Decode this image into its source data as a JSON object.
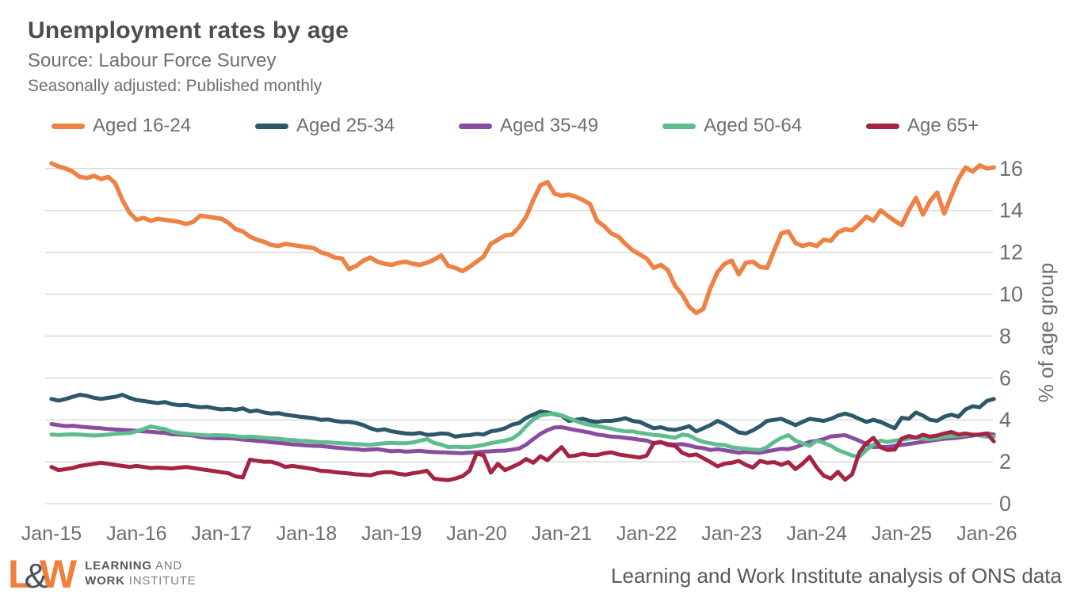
{
  "header": {
    "title": "Unemployment rates by age",
    "source": "Source: Labour Force Survey",
    "frequency": "Seasonally adjusted: Published monthly"
  },
  "footer": {
    "attribution": "Learning and Work Institute analysis of ONS data",
    "logo": {
      "letter_l": "L",
      "ampersand": "&",
      "letter_w": "W",
      "line1_bold": "LEARNING",
      "line1_rest": "AND",
      "line2_bold": "WORK",
      "line2_rest": "INSTITUTE",
      "brand_orange": "#f07f3c",
      "brand_gray": "#55575a"
    }
  },
  "chart_data": {
    "type": "line",
    "title": "Unemployment rates by age",
    "xlabel": "",
    "ylabel": "% of age group",
    "ylim": [
      0,
      16
    ],
    "yticks": [
      0,
      2,
      4,
      6,
      8,
      10,
      12,
      14,
      16
    ],
    "xticklabels": [
      "Jan-15",
      "Jan-16",
      "Jan-17",
      "Jan-18",
      "Jan-19",
      "Jan-20",
      "Jan-21",
      "Jan-22",
      "Jan-23",
      "Jan-24",
      "Jan-25",
      "Jan-26"
    ],
    "x_unit": "months from Jan-2015, monthly series",
    "grid": "horizontal",
    "legend_position": "top",
    "grid_color": "#dadada",
    "series": [
      {
        "name": "Aged 16-24",
        "color": "#ee8144",
        "values": [
          16.25,
          16.1,
          16.0,
          15.85,
          15.6,
          15.55,
          15.65,
          15.5,
          15.6,
          15.3,
          14.5,
          13.9,
          13.55,
          13.65,
          13.5,
          13.6,
          13.55,
          13.5,
          13.45,
          13.35,
          13.45,
          13.75,
          13.7,
          13.65,
          13.6,
          13.4,
          13.1,
          13.0,
          12.75,
          12.6,
          12.5,
          12.35,
          12.3,
          12.4,
          12.35,
          12.3,
          12.25,
          12.2,
          12.0,
          11.9,
          11.75,
          11.7,
          11.2,
          11.35,
          11.6,
          11.75,
          11.55,
          11.45,
          11.4,
          11.5,
          11.55,
          11.45,
          11.4,
          11.5,
          11.65,
          11.85,
          11.35,
          11.25,
          11.1,
          11.3,
          11.55,
          11.8,
          12.4,
          12.6,
          12.8,
          12.85,
          13.2,
          13.7,
          14.5,
          15.2,
          15.35,
          14.8,
          14.7,
          14.75,
          14.65,
          14.5,
          14.3,
          13.5,
          13.25,
          12.9,
          12.75,
          12.4,
          12.1,
          11.9,
          11.7,
          11.25,
          11.4,
          11.15,
          10.4,
          10.0,
          9.4,
          9.1,
          9.3,
          10.3,
          11.05,
          11.45,
          11.6,
          10.95,
          11.5,
          11.55,
          11.3,
          11.25,
          12.1,
          12.9,
          13.0,
          12.45,
          12.3,
          12.4,
          12.3,
          12.6,
          12.55,
          12.95,
          13.1,
          13.05,
          13.35,
          13.7,
          13.5,
          14.0,
          13.75,
          13.5,
          13.3,
          14.0,
          14.6,
          13.8,
          14.45,
          14.85,
          13.85,
          14.7,
          15.5,
          16.05,
          15.85,
          16.15,
          16.0,
          16.05
        ]
      },
      {
        "name": "Aged 25-34",
        "color": "#2c5869",
        "values": [
          5.0,
          4.92,
          5.0,
          5.1,
          5.2,
          5.15,
          5.05,
          5.0,
          5.05,
          5.1,
          5.2,
          5.05,
          4.95,
          4.9,
          4.85,
          4.8,
          4.85,
          4.75,
          4.7,
          4.72,
          4.65,
          4.6,
          4.62,
          4.55,
          4.5,
          4.52,
          4.48,
          4.55,
          4.4,
          4.45,
          4.35,
          4.3,
          4.32,
          4.25,
          4.2,
          4.15,
          4.12,
          4.08,
          4.0,
          4.02,
          3.95,
          3.9,
          3.9,
          3.85,
          3.75,
          3.6,
          3.5,
          3.55,
          3.45,
          3.4,
          3.35,
          3.33,
          3.38,
          3.28,
          3.3,
          3.35,
          3.33,
          3.2,
          3.25,
          3.27,
          3.33,
          3.3,
          3.45,
          3.5,
          3.6,
          3.77,
          3.85,
          4.1,
          4.25,
          4.4,
          4.35,
          4.27,
          4.2,
          3.95,
          4.0,
          4.05,
          3.95,
          3.9,
          3.95,
          3.95,
          4.0,
          4.08,
          3.95,
          3.9,
          3.75,
          3.6,
          3.65,
          3.55,
          3.52,
          3.6,
          3.7,
          3.45,
          3.6,
          3.75,
          3.95,
          3.8,
          3.6,
          3.4,
          3.35,
          3.5,
          3.7,
          3.95,
          4.0,
          4.05,
          3.9,
          3.75,
          3.9,
          4.05,
          4.0,
          3.95,
          4.05,
          4.2,
          4.3,
          4.2,
          4.05,
          3.9,
          4.0,
          3.9,
          3.75,
          3.6,
          4.1,
          4.05,
          4.35,
          4.2,
          4.0,
          3.95,
          4.15,
          4.25,
          4.15,
          4.5,
          4.65,
          4.6,
          4.9,
          5.0
        ]
      },
      {
        "name": "Aged 35-49",
        "color": "#8a4ca0",
        "values": [
          3.8,
          3.75,
          3.7,
          3.72,
          3.68,
          3.65,
          3.62,
          3.6,
          3.56,
          3.54,
          3.52,
          3.5,
          3.48,
          3.45,
          3.43,
          3.4,
          3.38,
          3.31,
          3.3,
          3.28,
          3.25,
          3.18,
          3.15,
          3.13,
          3.12,
          3.12,
          3.1,
          3.06,
          3.04,
          2.99,
          2.97,
          2.93,
          2.9,
          2.87,
          2.83,
          2.81,
          2.78,
          2.76,
          2.75,
          2.72,
          2.68,
          2.65,
          2.62,
          2.6,
          2.56,
          2.58,
          2.6,
          2.55,
          2.5,
          2.52,
          2.48,
          2.5,
          2.52,
          2.48,
          2.46,
          2.45,
          2.44,
          2.42,
          2.41,
          2.44,
          2.45,
          2.48,
          2.5,
          2.52,
          2.53,
          2.58,
          2.63,
          2.82,
          3.08,
          3.33,
          3.51,
          3.64,
          3.65,
          3.58,
          3.51,
          3.45,
          3.39,
          3.3,
          3.26,
          3.2,
          3.18,
          3.14,
          3.1,
          3.05,
          3.01,
          2.89,
          2.92,
          2.85,
          2.82,
          2.84,
          2.78,
          2.69,
          2.65,
          2.56,
          2.6,
          2.55,
          2.49,
          2.43,
          2.47,
          2.45,
          2.43,
          2.5,
          2.56,
          2.62,
          2.6,
          2.69,
          2.82,
          2.95,
          3.0,
          3.08,
          3.21,
          3.24,
          3.27,
          3.14,
          3.01,
          2.84,
          2.7,
          2.72,
          2.7,
          2.76,
          2.8,
          2.85,
          2.9,
          2.95,
          3.0,
          3.05,
          3.1,
          3.12,
          3.15,
          3.2,
          3.25,
          3.3,
          3.35,
          3.3
        ]
      },
      {
        "name": "Aged 50-64",
        "color": "#5ebd8d",
        "values": [
          3.3,
          3.28,
          3.3,
          3.31,
          3.3,
          3.27,
          3.25,
          3.27,
          3.3,
          3.33,
          3.35,
          3.37,
          3.45,
          3.56,
          3.69,
          3.62,
          3.56,
          3.43,
          3.38,
          3.34,
          3.31,
          3.28,
          3.25,
          3.27,
          3.26,
          3.25,
          3.22,
          3.18,
          3.2,
          3.18,
          3.15,
          3.12,
          3.1,
          3.06,
          3.04,
          3.0,
          2.99,
          2.96,
          2.93,
          2.93,
          2.9,
          2.88,
          2.87,
          2.84,
          2.82,
          2.8,
          2.85,
          2.88,
          2.9,
          2.88,
          2.89,
          2.92,
          3.0,
          3.08,
          2.9,
          2.82,
          2.7,
          2.72,
          2.7,
          2.7,
          2.75,
          2.8,
          2.89,
          2.95,
          3.01,
          3.1,
          3.33,
          3.7,
          4.02,
          4.21,
          4.27,
          4.3,
          4.21,
          4.08,
          3.95,
          3.83,
          3.76,
          3.7,
          3.64,
          3.58,
          3.5,
          3.45,
          3.45,
          3.38,
          3.33,
          3.28,
          3.25,
          3.2,
          3.14,
          3.3,
          3.25,
          3.07,
          2.95,
          2.88,
          2.82,
          2.8,
          2.69,
          2.65,
          2.62,
          2.58,
          2.56,
          2.69,
          2.95,
          3.14,
          3.27,
          3.01,
          2.88,
          2.76,
          3.01,
          2.9,
          2.76,
          2.56,
          2.43,
          2.3,
          2.24,
          2.56,
          2.82,
          3.01,
          2.95,
          3.01,
          3.05,
          3.1,
          3.15,
          3.1,
          3.08,
          3.12,
          3.2,
          3.22,
          3.25,
          3.28,
          3.3,
          3.25,
          3.2,
          3.2
        ]
      },
      {
        "name": "Age 65+",
        "color": "#a52443",
        "values": [
          1.75,
          1.6,
          1.65,
          1.7,
          1.8,
          1.85,
          1.9,
          1.95,
          1.9,
          1.85,
          1.8,
          1.75,
          1.8,
          1.75,
          1.7,
          1.72,
          1.7,
          1.68,
          1.72,
          1.75,
          1.7,
          1.65,
          1.6,
          1.55,
          1.5,
          1.45,
          1.3,
          1.25,
          2.1,
          2.05,
          2.0,
          2.0,
          1.9,
          1.75,
          1.8,
          1.75,
          1.7,
          1.65,
          1.57,
          1.55,
          1.5,
          1.47,
          1.44,
          1.4,
          1.38,
          1.35,
          1.45,
          1.5,
          1.5,
          1.42,
          1.38,
          1.45,
          1.5,
          1.57,
          1.19,
          1.15,
          1.12,
          1.2,
          1.31,
          1.57,
          2.4,
          2.3,
          1.48,
          1.9,
          1.6,
          1.75,
          1.9,
          2.13,
          1.95,
          2.26,
          2.07,
          2.4,
          2.7,
          2.26,
          2.3,
          2.38,
          2.32,
          2.32,
          2.4,
          2.45,
          2.35,
          2.3,
          2.25,
          2.2,
          2.3,
          2.89,
          2.95,
          2.8,
          2.76,
          2.43,
          2.3,
          2.35,
          2.17,
          1.98,
          1.78,
          1.91,
          1.95,
          2.04,
          1.85,
          1.72,
          2.04,
          1.95,
          1.98,
          1.85,
          1.98,
          1.65,
          1.9,
          2.24,
          1.72,
          1.33,
          1.2,
          1.52,
          1.14,
          1.4,
          2.43,
          2.88,
          3.14,
          2.69,
          2.56,
          2.58,
          3.1,
          3.23,
          3.15,
          3.29,
          3.2,
          3.25,
          3.35,
          3.42,
          3.3,
          3.35,
          3.29,
          3.3,
          3.35,
          2.97
        ]
      }
    ]
  }
}
